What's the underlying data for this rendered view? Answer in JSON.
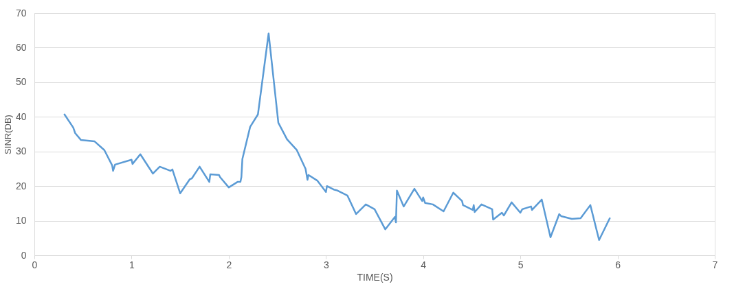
{
  "chart_data": {
    "type": "line",
    "xlabel": "TIME(S)",
    "ylabel": "SINR(DB)",
    "xlim": [
      0,
      7
    ],
    "xticks": [
      0,
      1,
      2,
      3,
      4,
      5,
      6,
      7
    ],
    "ylim": [
      0,
      70
    ],
    "yticks": [
      0,
      10,
      20,
      30,
      40,
      50,
      60,
      70
    ],
    "grid": "y",
    "legend": false,
    "marker": "none",
    "line_style": "solid",
    "series": [
      {
        "color": "#5b9bd5",
        "x": [
          0.31,
          0.4,
          0.42,
          0.48,
          0.62,
          0.72,
          0.8,
          0.81,
          0.83,
          1.0,
          1.01,
          1.09,
          1.22,
          1.29,
          1.4,
          1.42,
          1.5,
          1.6,
          1.62,
          1.7,
          1.8,
          1.81,
          1.9,
          1.91,
          2.0,
          2.09,
          2.12,
          2.13,
          2.14,
          2.22,
          2.3,
          2.41,
          2.51,
          2.6,
          2.7,
          2.79,
          2.81,
          2.82,
          2.91,
          3.0,
          3.01,
          3.08,
          3.11,
          3.22,
          3.31,
          3.41,
          3.5,
          3.61,
          3.71,
          3.72,
          3.73,
          3.8,
          3.91,
          3.99,
          4.0,
          4.02,
          4.1,
          4.21,
          4.31,
          4.4,
          4.41,
          4.51,
          4.52,
          4.53,
          4.6,
          4.71,
          4.72,
          4.81,
          4.83,
          4.91,
          5.0,
          5.02,
          5.11,
          5.12,
          5.22,
          5.31,
          5.4,
          5.42,
          5.53,
          5.62,
          5.72,
          5.81,
          5.92
        ],
        "values": [
          40.7,
          36.9,
          35.3,
          33.3,
          32.9,
          30.4,
          26.0,
          24.4,
          26.2,
          27.6,
          26.4,
          29.2,
          23.6,
          25.6,
          24.4,
          24.8,
          17.9,
          22.0,
          22.2,
          25.6,
          21.2,
          23.4,
          23.2,
          22.6,
          19.6,
          21.2,
          21.2,
          22.6,
          27.8,
          37.1,
          40.7,
          64.1,
          38.3,
          33.5,
          30.4,
          25.0,
          21.8,
          23.2,
          21.6,
          18.3,
          20.0,
          19.0,
          18.8,
          17.3,
          11.9,
          14.7,
          13.3,
          7.5,
          11.1,
          9.5,
          18.7,
          14.1,
          19.2,
          15.7,
          16.7,
          15.1,
          14.7,
          12.7,
          18.1,
          15.7,
          14.5,
          13.1,
          14.5,
          12.5,
          14.7,
          13.3,
          10.3,
          12.3,
          11.5,
          15.3,
          12.3,
          13.3,
          14.1,
          13.1,
          16.1,
          5.2,
          11.9,
          11.3,
          10.5,
          10.7,
          14.5,
          4.4,
          10.7
        ]
      }
    ]
  }
}
